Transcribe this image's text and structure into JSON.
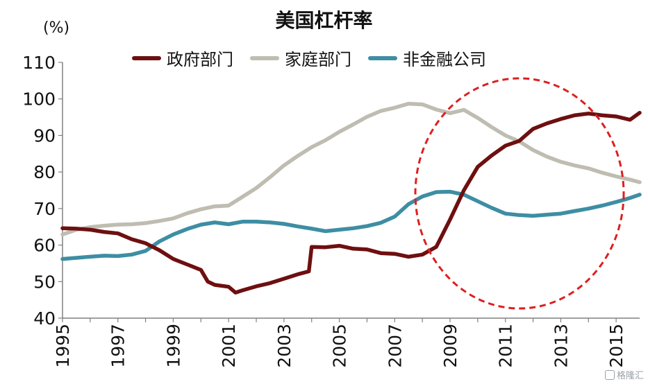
{
  "chart_data": {
    "type": "line",
    "title": "美国杠杆率",
    "unit_label": "(%)",
    "ylim": [
      40,
      110
    ],
    "yticks": [
      40,
      50,
      60,
      70,
      80,
      90,
      100,
      110
    ],
    "xlim": [
      1995,
      2015.85
    ],
    "xticks": [
      "1995",
      "1997",
      "1999",
      "2001",
      "2003",
      "2005",
      "2007",
      "2009",
      "2011",
      "2013",
      "2015"
    ],
    "legend_position": "top",
    "series": [
      {
        "name": "政府部门",
        "color": "#6e0f10",
        "x": [
          1995.0,
          1995.5,
          1996.0,
          1996.5,
          1997.0,
          1997.5,
          1998.0,
          1998.5,
          1999.0,
          1999.5,
          2000.0,
          2000.25,
          2000.5,
          2001.0,
          2001.25,
          2001.5,
          2002.0,
          2002.5,
          2003.0,
          2003.5,
          2003.9,
          2004.0,
          2004.5,
          2005.0,
          2005.5,
          2006.0,
          2006.5,
          2007.0,
          2007.5,
          2008.0,
          2008.5,
          2009.0,
          2009.5,
          2010.0,
          2010.5,
          2011.0,
          2011.5,
          2012.0,
          2012.5,
          2013.0,
          2013.5,
          2014.0,
          2014.5,
          2015.0,
          2015.5,
          2015.85
        ],
        "values": [
          64.6,
          64.5,
          64.2,
          63.6,
          63.2,
          61.6,
          60.5,
          58.6,
          56.2,
          54.7,
          53.2,
          50.0,
          49.1,
          48.6,
          47.0,
          47.6,
          48.7,
          49.6,
          50.8,
          52.0,
          52.8,
          59.5,
          59.4,
          59.8,
          59.0,
          58.8,
          57.8,
          57.6,
          56.8,
          57.4,
          59.5,
          67.0,
          75.0,
          81.4,
          84.5,
          87.2,
          88.5,
          91.8,
          93.3,
          94.5,
          95.5,
          96.0,
          95.5,
          95.2,
          94.3,
          96.2
        ]
      },
      {
        "name": "家庭部门",
        "color": "#bfbdb1",
        "x": [
          1995.0,
          1995.5,
          1996.0,
          1996.5,
          1997.0,
          1997.5,
          1998.0,
          1998.5,
          1999.0,
          1999.5,
          2000.0,
          2000.5,
          2001.0,
          2001.5,
          2002.0,
          2002.5,
          2003.0,
          2003.5,
          2004.0,
          2004.5,
          2005.0,
          2005.5,
          2006.0,
          2006.5,
          2007.0,
          2007.5,
          2008.0,
          2008.5,
          2009.0,
          2009.5,
          2010.0,
          2010.5,
          2011.0,
          2011.5,
          2012.0,
          2012.5,
          2013.0,
          2013.5,
          2014.0,
          2014.5,
          2015.0,
          2015.5,
          2015.85
        ],
        "values": [
          62.9,
          64.2,
          64.9,
          65.3,
          65.6,
          65.7,
          66.0,
          66.6,
          67.3,
          68.7,
          69.8,
          70.6,
          70.8,
          73.2,
          75.6,
          78.6,
          81.8,
          84.4,
          86.8,
          88.7,
          91.0,
          93.0,
          95.1,
          96.7,
          97.6,
          98.7,
          98.5,
          97.1,
          96.1,
          97.0,
          94.8,
          92.3,
          90.0,
          88.4,
          86.0,
          84.2,
          82.8,
          81.8,
          81.0,
          79.8,
          78.8,
          77.9,
          77.2
        ]
      },
      {
        "name": "非金融公司",
        "color": "#3d8ea3",
        "x": [
          1995.0,
          1995.5,
          1996.0,
          1996.5,
          1997.0,
          1997.5,
          1998.0,
          1998.5,
          1999.0,
          1999.5,
          2000.0,
          2000.5,
          2001.0,
          2001.5,
          2002.0,
          2002.5,
          2003.0,
          2003.5,
          2004.0,
          2004.5,
          2005.0,
          2005.5,
          2006.0,
          2006.5,
          2007.0,
          2007.5,
          2008.0,
          2008.5,
          2009.0,
          2009.5,
          2010.0,
          2010.5,
          2011.0,
          2011.5,
          2012.0,
          2012.5,
          2013.0,
          2013.5,
          2014.0,
          2014.5,
          2015.0,
          2015.5,
          2015.85
        ],
        "values": [
          56.2,
          56.5,
          56.8,
          57.1,
          57.0,
          57.4,
          58.4,
          61.0,
          62.9,
          64.4,
          65.6,
          66.2,
          65.7,
          66.4,
          66.4,
          66.2,
          65.8,
          65.1,
          64.5,
          63.8,
          64.2,
          64.6,
          65.2,
          66.1,
          67.8,
          71.2,
          73.3,
          74.5,
          74.6,
          73.8,
          72.0,
          70.2,
          68.6,
          68.2,
          68.0,
          68.3,
          68.6,
          69.3,
          70.0,
          70.8,
          71.8,
          72.9,
          73.8
        ]
      }
    ]
  },
  "watermark": {
    "text": "格隆汇"
  },
  "colors": {
    "highlight_circle": "#dd1f1f",
    "axis": "#808080"
  }
}
